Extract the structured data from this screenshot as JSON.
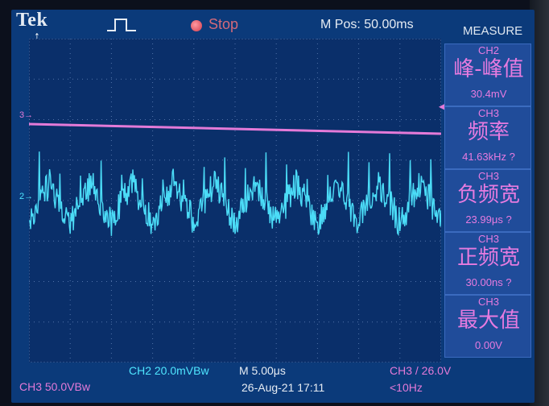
{
  "header": {
    "brand": "Tek",
    "run_state": "Stop",
    "horizontal_position": "M Pos: 50.00ms",
    "menu_title": "MEASURE"
  },
  "icons": {
    "trigger_position": "left-arrow-icon",
    "acquisition_mode": "pulse-waveform-icon",
    "run_status": "stop-indicator-icon",
    "trigger_level": "left-arrow-icon"
  },
  "markers": {
    "ch3_ground": "3",
    "ch2_ground": "2",
    "trigger_level_marker": "◄"
  },
  "measurements": [
    {
      "channel": "CH2",
      "name": "峰-峰值",
      "value": "30.4mV"
    },
    {
      "channel": "CH3",
      "name": "频率",
      "value": "41.63kHz ?"
    },
    {
      "channel": "CH3",
      "name": "负频宽",
      "value": "23.99μs ?"
    },
    {
      "channel": "CH3",
      "name": "正频宽",
      "value": "30.00ns ?"
    },
    {
      "channel": "CH3",
      "name": "最大值",
      "value": "0.00V"
    }
  ],
  "status": {
    "ch2_scale": "CH2  20.0mVBw",
    "timebase": "M 5.00μs",
    "trigger": "CH3  /  26.0V",
    "ch3_scale": "CH3  50.0VBw",
    "datetime": "26-Aug-21 17:11",
    "trigger_frequency": "<10Hz"
  },
  "colors": {
    "screen_bg": "#0b3a7a",
    "ch2": "#4fe6ff",
    "ch3": "#e47ad8",
    "text": "#e6ecf3",
    "measure_box": "#204c9a"
  },
  "chart_data": {
    "type": "line",
    "series": [
      {
        "name": "CH2",
        "color": "#4fe6ff",
        "x": [
          0,
          2.5,
          5,
          7.5,
          10,
          12.5,
          15,
          17.5,
          20,
          22.5,
          25,
          27.5,
          30,
          32.5,
          35,
          37.5,
          40,
          42.5,
          45,
          47.5,
          50
        ],
        "y": [
          -12,
          18,
          -14,
          18,
          -13,
          18,
          -14,
          18,
          -13,
          18,
          -14,
          18,
          -13,
          18,
          -14,
          18,
          -13,
          18,
          -14,
          17,
          -12
        ]
      },
      {
        "name": "CH3",
        "color": "#e47ad8",
        "x": [
          0,
          50
        ],
        "y": [
          0,
          0
        ]
      }
    ],
    "xlabel": "",
    "ylabel": "",
    "xlim": [
      0,
      50
    ],
    "ylim": [
      -80,
      80
    ],
    "grid": true
  }
}
